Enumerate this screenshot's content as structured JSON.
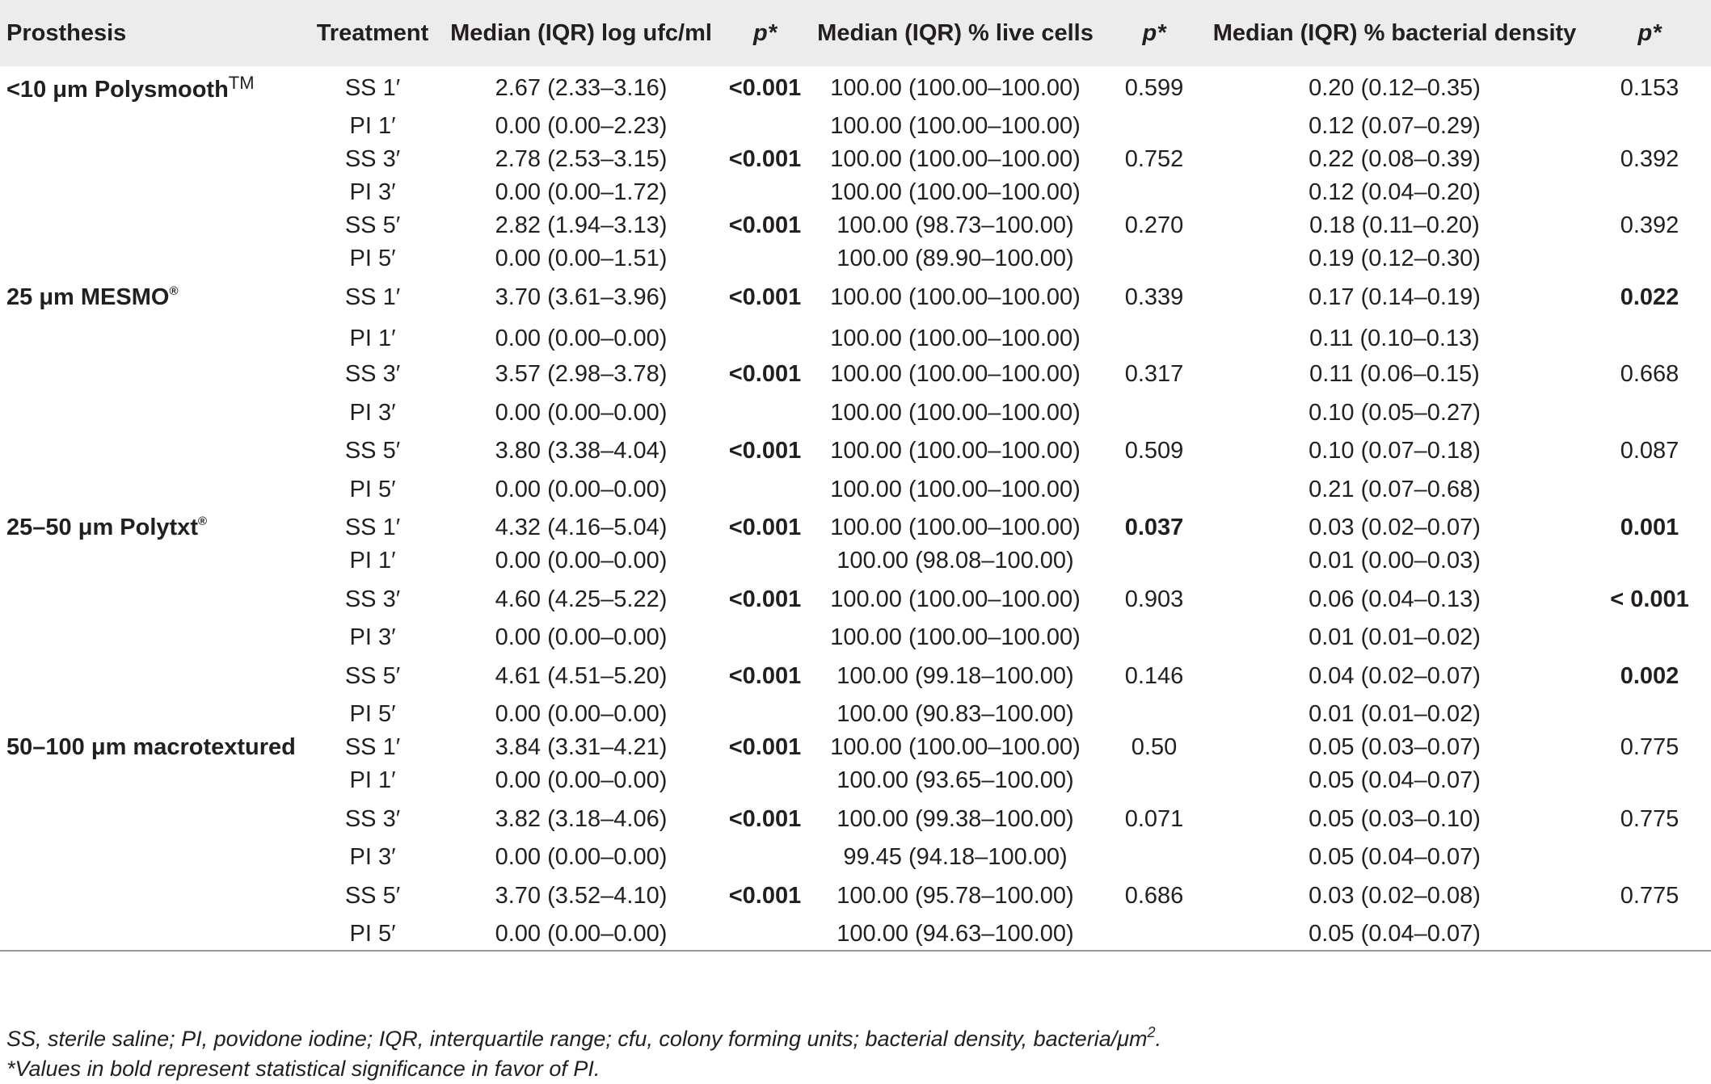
{
  "table": {
    "headers": {
      "prosthesis": "Prosthesis",
      "treatment": "Treatment",
      "log_ufc": "Median (IQR) log ufc/ml",
      "p1": "p*",
      "live_cells": "Median (IQR) % live cells",
      "p2": "p*",
      "density": "Median (IQR) % bacterial density",
      "p3": "p*"
    },
    "groups": [
      {
        "name_main": "<10 μm Polysmooth",
        "name_sup": "TM",
        "rows": [
          {
            "treatment": "SS 1′",
            "ufc": "2.67 (2.33–3.16)",
            "p1": "<0.001",
            "p1_sig": true,
            "live": "100.00 (100.00–100.00)",
            "p2": "0.599",
            "p2_sig": false,
            "density": "0.20 (0.12–0.35)",
            "p3": "0.153",
            "p3_sig": false
          },
          {
            "treatment": "PI 1′",
            "ufc": "0.00 (0.00–2.23)",
            "p1": "",
            "p1_sig": false,
            "live": "100.00 (100.00–100.00)",
            "p2": "",
            "p2_sig": false,
            "density": "0.12 (0.07–0.29)",
            "p3": "",
            "p3_sig": false
          },
          {
            "treatment": "SS 3′",
            "ufc": "2.78 (2.53–3.15)",
            "p1": "<0.001",
            "p1_sig": true,
            "live": "100.00 (100.00–100.00)",
            "p2": "0.752",
            "p2_sig": false,
            "density": "0.22 (0.08–0.39)",
            "p3": "0.392",
            "p3_sig": false
          },
          {
            "treatment": "PI 3′",
            "ufc": "0.00 (0.00–1.72)",
            "p1": "",
            "p1_sig": false,
            "live": "100.00 (100.00–100.00)",
            "p2": "",
            "p2_sig": false,
            "density": "0.12 (0.04–0.20)",
            "p3": "",
            "p3_sig": false
          },
          {
            "treatment": "SS 5′",
            "ufc": "2.82 (1.94–3.13)",
            "p1": "<0.001",
            "p1_sig": true,
            "live": "100.00 (98.73–100.00)",
            "p2": "0.270",
            "p2_sig": false,
            "density": "0.18 (0.11–0.20)",
            "p3": "0.392",
            "p3_sig": false
          },
          {
            "treatment": "PI 5′",
            "ufc": "0.00 (0.00–1.51)",
            "p1": "",
            "p1_sig": false,
            "live": "100.00 (89.90–100.00)",
            "p2": "",
            "p2_sig": false,
            "density": "0.19 (0.12–0.30)",
            "p3": "",
            "p3_sig": false
          }
        ]
      },
      {
        "name_main": "25 μm MESMO",
        "name_sup": "®",
        "rows": [
          {
            "treatment": "SS 1′",
            "ufc": "3.70 (3.61–3.96)",
            "p1": "<0.001",
            "p1_sig": true,
            "live": "100.00 (100.00–100.00)",
            "p2": "0.339",
            "p2_sig": false,
            "density": "0.17 (0.14–0.19)",
            "p3": "0.022",
            "p3_sig": true
          },
          {
            "treatment": "PI 1′",
            "ufc": "0.00 (0.00–0.00)",
            "p1": "",
            "p1_sig": false,
            "live": "100.00 (100.00–100.00)",
            "p2": "",
            "p2_sig": false,
            "density": "0.11 (0.10–0.13)",
            "p3": "",
            "p3_sig": false
          },
          {
            "treatment": "SS 3′",
            "ufc": "3.57 (2.98–3.78)",
            "p1": "<0.001",
            "p1_sig": true,
            "live": "100.00 (100.00–100.00)",
            "p2": "0.317",
            "p2_sig": false,
            "density": "0.11 (0.06–0.15)",
            "p3": "0.668",
            "p3_sig": false
          },
          {
            "treatment": "PI 3′",
            "ufc": "0.00 (0.00–0.00)",
            "p1": "",
            "p1_sig": false,
            "live": "100.00 (100.00–100.00)",
            "p2": "",
            "p2_sig": false,
            "density": "0.10 (0.05–0.27)",
            "p3": "",
            "p3_sig": false
          },
          {
            "treatment": "SS 5′",
            "ufc": "3.80 (3.38–4.04)",
            "p1": "<0.001",
            "p1_sig": true,
            "live": "100.00 (100.00–100.00)",
            "p2": "0.509",
            "p2_sig": false,
            "density": "0.10 (0.07–0.18)",
            "p3": "0.087",
            "p3_sig": false
          },
          {
            "treatment": "PI 5′",
            "ufc": "0.00 (0.00–0.00)",
            "p1": "",
            "p1_sig": false,
            "live": "100.00 (100.00–100.00)",
            "p2": "",
            "p2_sig": false,
            "density": "0.21 (0.07–0.68)",
            "p3": "",
            "p3_sig": false
          }
        ]
      },
      {
        "name_main": "25–50 μm Polytxt",
        "name_sup": "®",
        "rows": [
          {
            "treatment": "SS 1′",
            "ufc": "4.32 (4.16–5.04)",
            "p1": "<0.001",
            "p1_sig": true,
            "live": "100.00 (100.00–100.00)",
            "p2": "0.037",
            "p2_sig": true,
            "density": "0.03 (0.02–0.07)",
            "p3": "0.001",
            "p3_sig": true
          },
          {
            "treatment": "PI 1′",
            "ufc": "0.00 (0.00–0.00)",
            "p1": "",
            "p1_sig": false,
            "live": "100.00 (98.08–100.00)",
            "p2": "",
            "p2_sig": false,
            "density": "0.01 (0.00–0.03)",
            "p3": "",
            "p3_sig": false
          },
          {
            "treatment": "SS 3′",
            "ufc": "4.60 (4.25–5.22)",
            "p1": "<0.001",
            "p1_sig": true,
            "live": "100.00 (100.00–100.00)",
            "p2": "0.903",
            "p2_sig": false,
            "density": "0.06 (0.04–0.13)",
            "p3": "< 0.001",
            "p3_sig": true
          },
          {
            "treatment": "PI 3′",
            "ufc": "0.00 (0.00–0.00)",
            "p1": "",
            "p1_sig": false,
            "live": "100.00 (100.00–100.00)",
            "p2": "",
            "p2_sig": false,
            "density": "0.01 (0.01–0.02)",
            "p3": "",
            "p3_sig": false
          },
          {
            "treatment": "SS 5′",
            "ufc": "4.61 (4.51–5.20)",
            "p1": "<0.001",
            "p1_sig": true,
            "live": "100.00 (99.18–100.00)",
            "p2": "0.146",
            "p2_sig": false,
            "density": "0.04 (0.02–0.07)",
            "p3": "0.002",
            "p3_sig": true
          },
          {
            "treatment": "PI 5′",
            "ufc": "0.00 (0.00–0.00)",
            "p1": "",
            "p1_sig": false,
            "live": "100.00 (90.83–100.00)",
            "p2": "",
            "p2_sig": false,
            "density": "0.01 (0.01–0.02)",
            "p3": "",
            "p3_sig": false
          }
        ]
      },
      {
        "name_main": "50–100 μm macrotextured",
        "name_sup": "",
        "rows": [
          {
            "treatment": "SS 1′",
            "ufc": "3.84 (3.31–4.21)",
            "p1": "<0.001",
            "p1_sig": true,
            "live": "100.00 (100.00–100.00)",
            "p2": "0.50",
            "p2_sig": false,
            "density": "0.05 (0.03–0.07)",
            "p3": "0.775",
            "p3_sig": false
          },
          {
            "treatment": "PI 1′",
            "ufc": "0.00 (0.00–0.00)",
            "p1": "",
            "p1_sig": false,
            "live": "100.00 (93.65–100.00)",
            "p2": "",
            "p2_sig": false,
            "density": "0.05 (0.04–0.07)",
            "p3": "",
            "p3_sig": false
          },
          {
            "treatment": "SS 3′",
            "ufc": "3.82 (3.18–4.06)",
            "p1": "<0.001",
            "p1_sig": true,
            "live": "100.00 (99.38–100.00)",
            "p2": "0.071",
            "p2_sig": false,
            "density": "0.05 (0.03–0.10)",
            "p3": "0.775",
            "p3_sig": false
          },
          {
            "treatment": "PI 3′",
            "ufc": "0.00 (0.00–0.00)",
            "p1": "",
            "p1_sig": false,
            "live": "99.45 (94.18–100.00)",
            "p2": "",
            "p2_sig": false,
            "density": "0.05 (0.04–0.07)",
            "p3": "",
            "p3_sig": false
          },
          {
            "treatment": "SS 5′",
            "ufc": "3.70 (3.52–4.10)",
            "p1": "<0.001",
            "p1_sig": true,
            "live": "100.00 (95.78–100.00)",
            "p2": "0.686",
            "p2_sig": false,
            "density": "0.03 (0.02–0.08)",
            "p3": "0.775",
            "p3_sig": false
          },
          {
            "treatment": "PI 5′",
            "ufc": "0.00 (0.00–0.00)",
            "p1": "",
            "p1_sig": false,
            "live": "100.00 (94.63–100.00)",
            "p2": "",
            "p2_sig": false,
            "density": "0.05 (0.04–0.07)",
            "p3": "",
            "p3_sig": false
          }
        ]
      }
    ]
  },
  "footnotes": {
    "line1_text": "SS, sterile saline; PI, povidone iodine; IQR, interquartile range; cfu, colony forming units; bacterial density, bacteria/μm",
    "line1_sup": "2",
    "line1_end": ".",
    "line2": "*Values in bold represent statistical significance in favor of PI."
  }
}
